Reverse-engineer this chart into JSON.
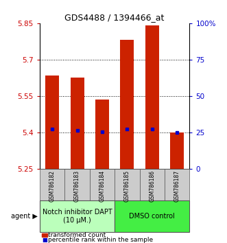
{
  "title": "GDS4488 / 1394466_at",
  "samples": [
    "GSM786182",
    "GSM786183",
    "GSM786184",
    "GSM786185",
    "GSM786186",
    "GSM786187"
  ],
  "bar_values": [
    5.635,
    5.625,
    5.535,
    5.78,
    5.84,
    5.4
  ],
  "percentile_values": [
    5.415,
    5.408,
    5.403,
    5.415,
    5.415,
    5.4
  ],
  "ymin": 5.25,
  "ymax": 5.85,
  "yticks_left": [
    5.25,
    5.4,
    5.55,
    5.7,
    5.85
  ],
  "yticks_right": [
    0,
    25,
    50,
    75,
    100
  ],
  "ytick_labels_right": [
    "0",
    "25",
    "50",
    "75",
    "100%"
  ],
  "bar_color": "#cc2200",
  "percentile_color": "#0000cc",
  "bar_bottom": 5.25,
  "group1_label": "Notch inhibitor DAPT\n(10 μM.)",
  "group2_label": "DMSO control",
  "group1_color": "#bbffbb",
  "group2_color": "#44ee44",
  "agent_label": "agent",
  "legend_bar_label": "transformed count",
  "legend_dot_label": "percentile rank within the sample",
  "grid_yticks": [
    5.4,
    5.55,
    5.7
  ],
  "left_color": "#cc0000",
  "right_color": "#0000cc",
  "title_fontsize": 9,
  "tick_fontsize": 7.5,
  "sample_fontsize": 5.5,
  "legend_fontsize": 6.5,
  "group_fontsize": 7
}
